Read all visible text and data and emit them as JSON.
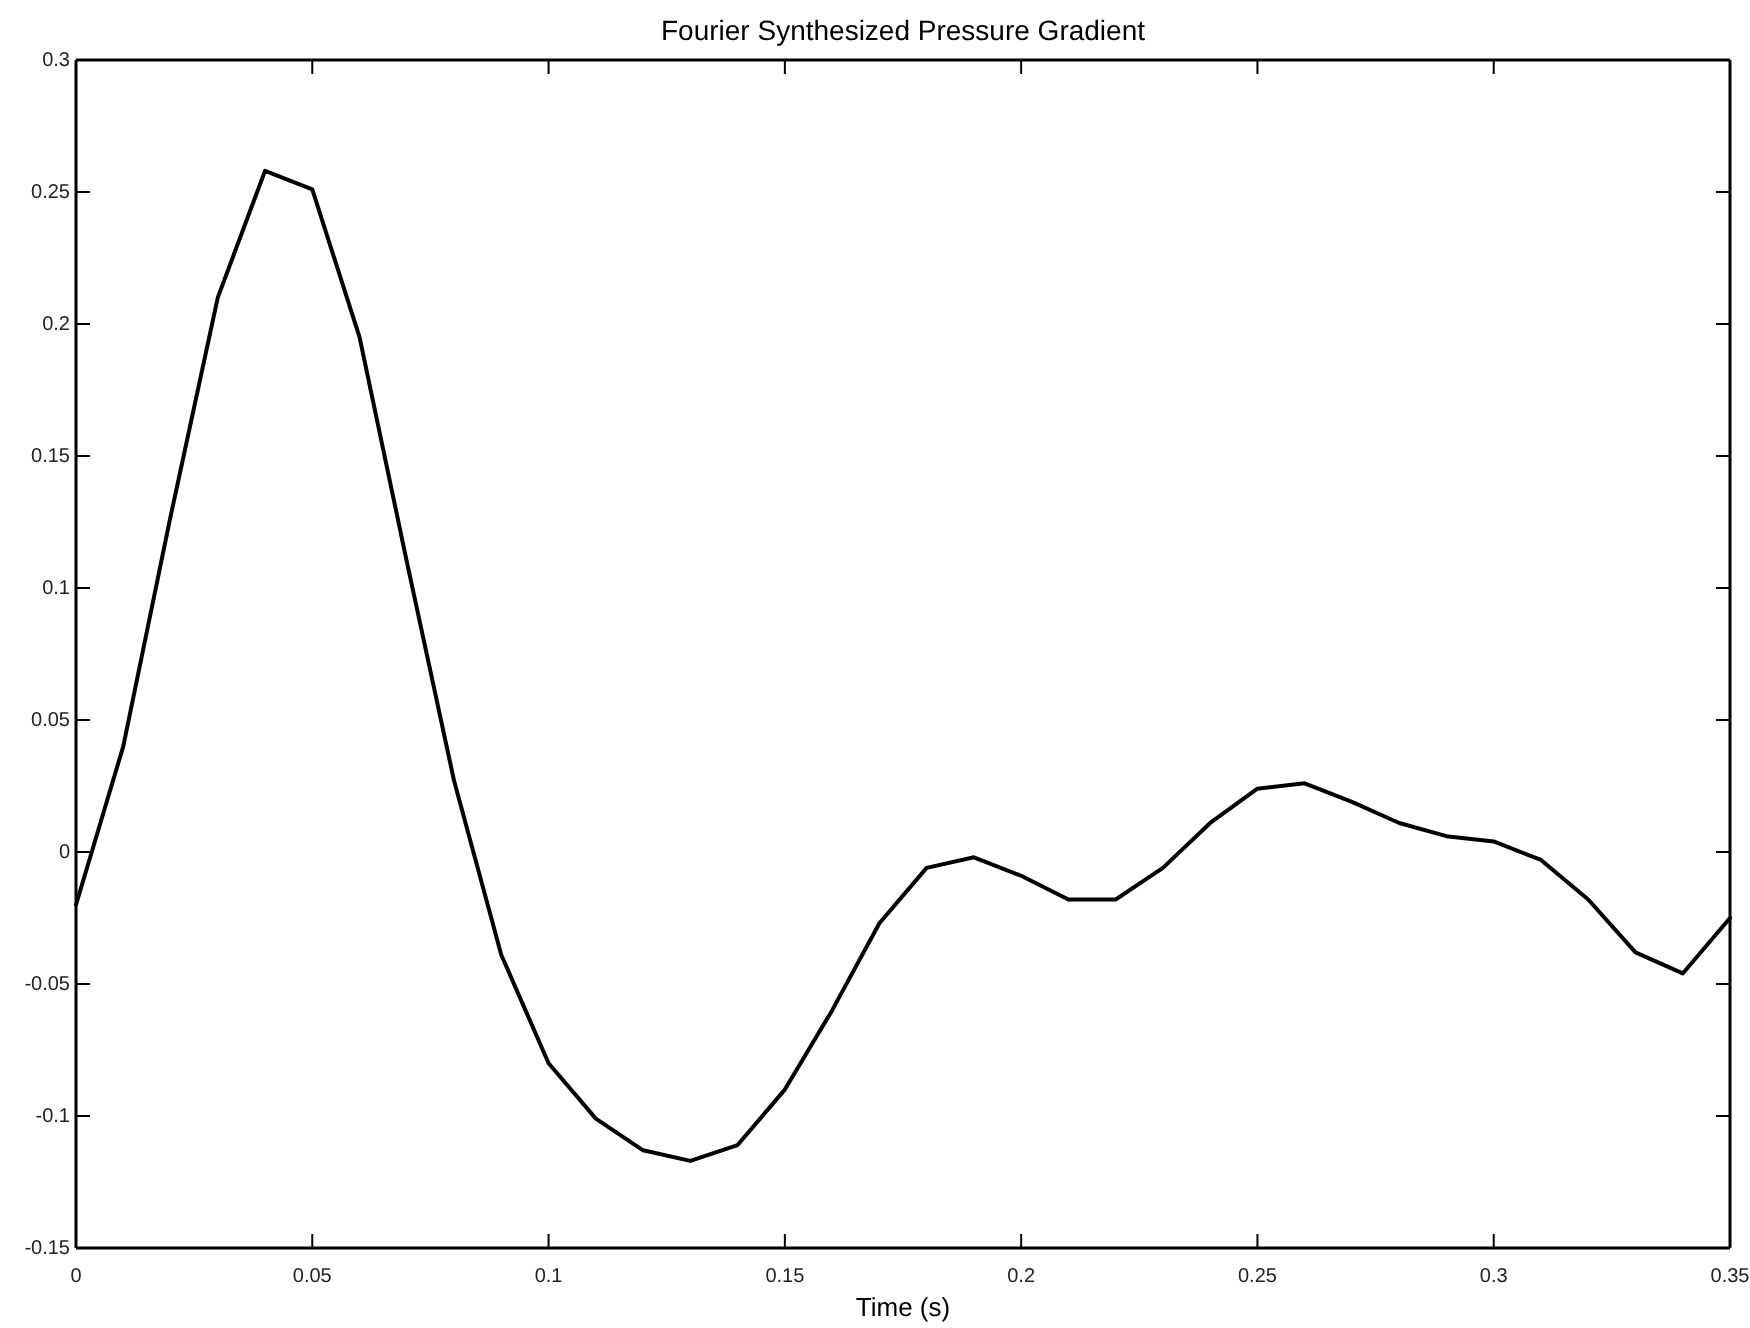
{
  "chart_data": {
    "type": "line",
    "title": "Fourier Synthesized Pressure Gradient",
    "xlabel": "Time (s)",
    "x": [
      0,
      0.01,
      0.02,
      0.03,
      0.04,
      0.05,
      0.06,
      0.07,
      0.08,
      0.09,
      0.1,
      0.11,
      0.12,
      0.13,
      0.14,
      0.15,
      0.16,
      0.17,
      0.18,
      0.19,
      0.2,
      0.21,
      0.22,
      0.23,
      0.24,
      0.25,
      0.26,
      0.27,
      0.28,
      0.29,
      0.3,
      0.31,
      0.32,
      0.33,
      0.34,
      0.35
    ],
    "series": [
      {
        "color": "#000000",
        "values": [
          -0.02,
          0.04,
          0.127,
          0.21,
          0.258,
          0.251,
          0.195,
          0.11,
          0.027,
          -0.039,
          -0.08,
          -0.101,
          -0.113,
          -0.117,
          -0.111,
          -0.09,
          -0.06,
          -0.027,
          -0.006,
          -0.002,
          -0.009,
          -0.018,
          -0.018,
          -0.006,
          0.011,
          0.024,
          0.026,
          0.019,
          0.011,
          0.006,
          0.004,
          -0.003,
          -0.018,
          -0.038,
          -0.046,
          -0.025
        ]
      }
    ],
    "xlim": [
      0,
      0.35
    ],
    "xticks": [
      0,
      0.05,
      0.1,
      0.15,
      0.2,
      0.25,
      0.3,
      0.35
    ],
    "ylim": [
      -0.15,
      0.3
    ],
    "yticks": [
      -0.15,
      -0.1,
      -0.05,
      0,
      0.05,
      0.1,
      0.15,
      0.2,
      0.25,
      0.3
    ],
    "grid": false,
    "marker": "none",
    "line_style": "solid"
  }
}
